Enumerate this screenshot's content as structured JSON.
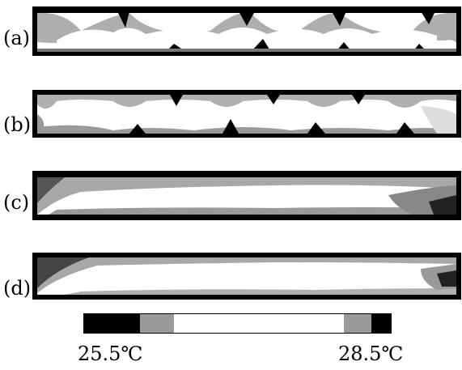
{
  "panels": [
    {
      "label": "(a)",
      "pattern": "scallop-cold-top"
    },
    {
      "label": "(b)",
      "pattern": "scallop-cold-top"
    },
    {
      "label": "(c)",
      "pattern": "cold-band-edges"
    },
    {
      "label": "(d)",
      "pattern": "cold-band-edges"
    }
  ],
  "colorbar": {
    "min_label": "25.5℃",
    "max_label": "28.5℃",
    "colors": [
      "#000000",
      "#9a9a9a",
      "#ffffff",
      "#9a9a9a",
      "#000000"
    ]
  }
}
